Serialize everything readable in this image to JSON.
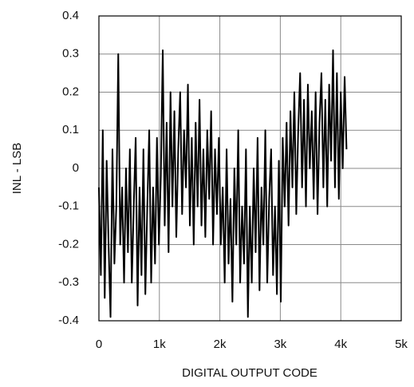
{
  "chart_data": {
    "type": "line",
    "x_label": "DIGITAL OUTPUT CODE",
    "y_label": "INL - LSB",
    "color": "#000000",
    "grid": true,
    "xlim": [
      0,
      5000
    ],
    "xticks": [
      0,
      {
        "value": 1000,
        "label": "1k"
      },
      {
        "value": 2000,
        "label": "2k"
      },
      {
        "value": 3000,
        "label": "3k"
      },
      {
        "value": 4000,
        "label": "4k"
      },
      {
        "value": 5000,
        "label": "5k"
      }
    ],
    "ylim": [
      -0.4,
      0.4
    ],
    "yticks": [
      -0.4,
      -0.3,
      -0.2,
      -0.1,
      0,
      0.1,
      0.2,
      0.3,
      0.4
    ],
    "x": [
      0,
      32,
      64,
      96,
      128,
      160,
      192,
      224,
      256,
      288,
      320,
      352,
      384,
      416,
      448,
      480,
      512,
      544,
      576,
      608,
      640,
      672,
      704,
      736,
      768,
      800,
      832,
      864,
      896,
      928,
      960,
      992,
      1024,
      1056,
      1088,
      1120,
      1152,
      1184,
      1216,
      1248,
      1280,
      1312,
      1344,
      1376,
      1408,
      1440,
      1472,
      1504,
      1536,
      1568,
      1600,
      1632,
      1664,
      1696,
      1728,
      1760,
      1792,
      1824,
      1856,
      1888,
      1920,
      1952,
      1984,
      2016,
      2048,
      2080,
      2112,
      2144,
      2176,
      2208,
      2240,
      2272,
      2304,
      2336,
      2368,
      2400,
      2432,
      2464,
      2496,
      2528,
      2560,
      2592,
      2624,
      2656,
      2688,
      2720,
      2752,
      2784,
      2816,
      2848,
      2880,
      2912,
      2944,
      2976,
      3008,
      3040,
      3072,
      3104,
      3136,
      3168,
      3200,
      3232,
      3264,
      3296,
      3328,
      3360,
      3392,
      3424,
      3456,
      3488,
      3520,
      3552,
      3584,
      3616,
      3648,
      3680,
      3712,
      3744,
      3776,
      3808,
      3840,
      3872,
      3904,
      3936,
      3968,
      4000,
      4032,
      4064,
      4095
    ],
    "values": [
      -0.05,
      -0.28,
      0.1,
      -0.34,
      0.02,
      -0.2,
      -0.39,
      0.05,
      -0.25,
      -0.1,
      0.3,
      -0.2,
      -0.05,
      -0.3,
      0.0,
      -0.22,
      0.05,
      -0.3,
      -0.1,
      0.08,
      -0.36,
      -0.05,
      -0.28,
      0.05,
      -0.33,
      -0.1,
      0.1,
      -0.3,
      -0.05,
      -0.25,
      0.08,
      -0.2,
      -0.02,
      0.31,
      -0.15,
      0.12,
      -0.22,
      0.2,
      -0.1,
      0.15,
      -0.18,
      0.05,
      0.2,
      -0.12,
      0.1,
      -0.05,
      0.22,
      -0.15,
      0.08,
      -0.2,
      0.12,
      -0.1,
      0.18,
      -0.15,
      0.05,
      -0.18,
      0.1,
      -0.08,
      0.15,
      -0.2,
      0.05,
      -0.12,
      0.08,
      -0.2,
      -0.05,
      -0.3,
      0.05,
      -0.25,
      -0.08,
      -0.35,
      0.0,
      -0.2,
      0.1,
      -0.3,
      -0.1,
      -0.25,
      0.05,
      -0.39,
      -0.1,
      -0.3,
      0.0,
      -0.22,
      0.08,
      -0.32,
      -0.05,
      -0.2,
      0.1,
      -0.3,
      -0.08,
      0.05,
      -0.28,
      -0.1,
      -0.33,
      0.02,
      -0.35,
      0.08,
      -0.1,
      0.12,
      -0.15,
      0.15,
      -0.05,
      0.2,
      -0.12,
      0.1,
      0.25,
      -0.05,
      0.18,
      -0.1,
      0.22,
      0.0,
      0.15,
      -0.08,
      0.2,
      -0.12,
      0.12,
      0.25,
      -0.05,
      0.18,
      -0.1,
      0.22,
      0.02,
      0.31,
      -0.05,
      0.25,
      -0.08,
      0.2,
      0.0,
      0.24,
      0.05
    ]
  }
}
